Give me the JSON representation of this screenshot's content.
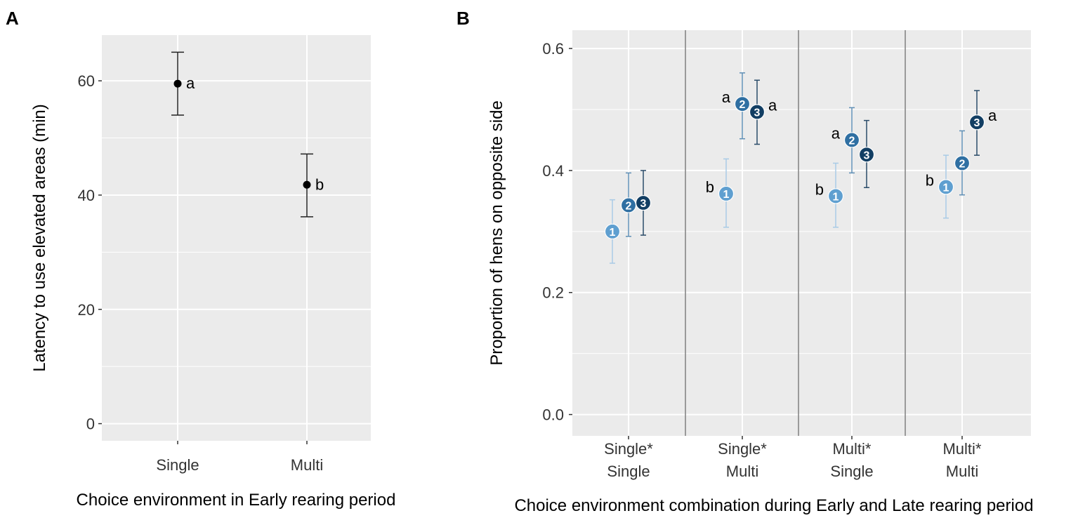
{
  "colors": {
    "panel_bg": "#ebebeb",
    "grid": "#ffffff",
    "divider": "#7f7f7f",
    "text": "#000000",
    "axis_text": "#333333",
    "series": [
      "#5f9fd0",
      "#2f6fa2",
      "#123e63"
    ],
    "series_error": [
      "#a9cbe6",
      "#5f8fb5",
      "#2b4c69"
    ]
  },
  "chart_data": [
    {
      "panel_label": "A",
      "type": "scatter",
      "title": "",
      "xlabel": "Choice environment in Early rearing period",
      "ylabel": "Latency to use elevated areas (min)",
      "categories": [
        "Single",
        "Multi"
      ],
      "ylim": [
        -3,
        68
      ],
      "yticks": [
        0,
        20,
        40,
        60
      ],
      "ytick_labels": [
        "0",
        "20",
        "40",
        "60"
      ],
      "grid": true,
      "points": [
        {
          "category": "Single",
          "y": 59.5,
          "lower": 54.0,
          "upper": 65.0,
          "letter": "a"
        },
        {
          "category": "Multi",
          "y": 41.8,
          "lower": 36.2,
          "upper": 47.2,
          "letter": "b"
        }
      ]
    },
    {
      "panel_label": "B",
      "type": "scatter",
      "title": "",
      "xlabel": "Choice environment combination during Early and Late rearing period",
      "ylabel": "Proportion of hens on opposite side",
      "categories": [
        [
          "Single*",
          "Single"
        ],
        [
          "Single*",
          "Multi"
        ],
        [
          "Multi*",
          "Single"
        ],
        [
          "Multi*",
          "Multi"
        ]
      ],
      "ylim": [
        -0.035,
        0.63
      ],
      "yticks": [
        0.0,
        0.2,
        0.4,
        0.6
      ],
      "ytick_labels": [
        "0.0",
        "0.2",
        "0.4",
        "0.6"
      ],
      "grid": true,
      "series": [
        {
          "name": "1",
          "values": [
            0.3,
            0.362,
            0.358,
            0.373
          ],
          "lower": [
            0.248,
            0.307,
            0.307,
            0.322
          ],
          "upper": [
            0.352,
            0.419,
            0.412,
            0.425
          ],
          "letters": [
            "",
            "b",
            "b",
            "b"
          ]
        },
        {
          "name": "2",
          "values": [
            0.343,
            0.509,
            0.45,
            0.412
          ],
          "lower": [
            0.292,
            0.452,
            0.396,
            0.36
          ],
          "upper": [
            0.396,
            0.56,
            0.503,
            0.465
          ],
          "letters": [
            "",
            "a",
            "a",
            ""
          ]
        },
        {
          "name": "3",
          "values": [
            0.347,
            0.496,
            0.426,
            0.479
          ],
          "lower": [
            0.294,
            0.443,
            0.372,
            0.425
          ],
          "upper": [
            0.4,
            0.548,
            0.482,
            0.531
          ],
          "letters": [
            "",
            "a",
            "",
            "a"
          ]
        }
      ]
    }
  ]
}
